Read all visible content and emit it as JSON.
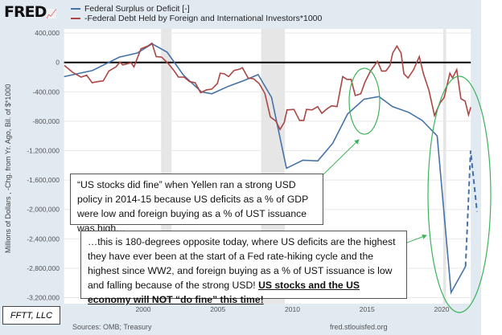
{
  "header": {
    "logo": "FRED"
  },
  "chart_data": {
    "type": "line",
    "ylabel": "Millions of Dollars , -Chg. from Yr. Ago, Bil. of $*1000",
    "xlim": [
      1994.7,
      2021.95
    ],
    "ylim": [
      -3200000,
      400000
    ],
    "xticks": [
      2000,
      2005,
      2010,
      2015,
      2020
    ],
    "yticks": [
      400000,
      0,
      -400000,
      -800000,
      -1200000,
      -1600000,
      -2000000,
      -2400000,
      -2800000,
      -3200000
    ],
    "ytick_labels": [
      "400,000",
      "0",
      "-400,000",
      "-800,000",
      "-1,200,000",
      "-1,600,000",
      "-2,000,000",
      "-2,400,000",
      "-2,800,000",
      "-3,200,000"
    ],
    "grid": true,
    "legend_placement": "top",
    "recessions": [
      [
        2001.2,
        2001.9
      ],
      [
        2007.9,
        2009.5
      ],
      [
        2020.1,
        2020.3
      ]
    ],
    "series": [
      {
        "name": "Federal Surplus or Deficit [-]",
        "color": "#4572a7",
        "points": [
          [
            1994.7,
            -193000
          ],
          [
            1996.6,
            -110000
          ],
          [
            1998.4,
            72000
          ],
          [
            1999.6,
            128000
          ],
          [
            2000.6,
            253000
          ],
          [
            2001.6,
            140000
          ],
          [
            2002.7,
            -174000
          ],
          [
            2003.9,
            -401000
          ],
          [
            2004.6,
            -427000
          ],
          [
            2005.7,
            -325000
          ],
          [
            2006.7,
            -250000
          ],
          [
            2007.7,
            -166000
          ],
          [
            2008.6,
            -476000
          ],
          [
            2009.6,
            -1440000
          ],
          [
            2010.7,
            -1330000
          ],
          [
            2011.7,
            -1340000
          ],
          [
            2012.7,
            -1100000
          ],
          [
            2013.7,
            -700000
          ],
          [
            2014.8,
            -500000
          ],
          [
            2015.8,
            -465000
          ],
          [
            2016.7,
            -600000
          ],
          [
            2017.8,
            -680000
          ],
          [
            2018.7,
            -790000
          ],
          [
            2019.7,
            -1000000
          ],
          [
            2020.63,
            -3130000
          ],
          [
            2021.6,
            -2775000
          ]
        ]
      },
      {
        "name": "-Federal Debt Held by Foreign and International Investors*1000",
        "color": "#aa4643",
        "points": [
          [
            1994.72,
            -42000
          ],
          [
            1995.28,
            -136000
          ],
          [
            1995.84,
            -200000
          ],
          [
            1996.21,
            -174000
          ],
          [
            1996.58,
            -276000
          ],
          [
            1996.96,
            -261000
          ],
          [
            1997.33,
            -250000
          ],
          [
            1997.7,
            -117000
          ],
          [
            1998.17,
            -61000
          ],
          [
            1998.45,
            4000
          ],
          [
            1998.63,
            -34000
          ],
          [
            1999.19,
            -4000
          ],
          [
            1999.38,
            -61000
          ],
          [
            1999.85,
            185000
          ],
          [
            2000.31,
            223000
          ],
          [
            2000.59,
            261000
          ],
          [
            2000.87,
            79000
          ],
          [
            2001.24,
            72000
          ],
          [
            2001.71,
            -23000
          ],
          [
            2002.08,
            -117000
          ],
          [
            2002.36,
            -200000
          ],
          [
            2002.74,
            -200000
          ],
          [
            2003.11,
            -261000
          ],
          [
            2003.48,
            -276000
          ],
          [
            2003.85,
            -412000
          ],
          [
            2004.23,
            -374000
          ],
          [
            2004.6,
            -363000
          ],
          [
            2004.97,
            -287000
          ],
          [
            2005.16,
            -147000
          ],
          [
            2005.44,
            -155000
          ],
          [
            2005.72,
            -193000
          ],
          [
            2006.09,
            -110000
          ],
          [
            2006.47,
            -91000
          ],
          [
            2006.65,
            -72000
          ],
          [
            2007.03,
            -212000
          ],
          [
            2007.4,
            -223000
          ],
          [
            2007.77,
            -287000
          ],
          [
            2008.15,
            -420000
          ],
          [
            2008.52,
            -741000
          ],
          [
            2008.89,
            -798000
          ],
          [
            2009.17,
            -911000
          ],
          [
            2009.45,
            -817000
          ],
          [
            2009.64,
            -646000
          ],
          [
            2010.1,
            -639000
          ],
          [
            2010.48,
            -790000
          ],
          [
            2010.76,
            -790000
          ],
          [
            2010.94,
            -639000
          ],
          [
            2011.32,
            -646000
          ],
          [
            2011.69,
            -601000
          ],
          [
            2011.97,
            -692000
          ],
          [
            2012.34,
            -628000
          ],
          [
            2012.62,
            -590000
          ],
          [
            2012.99,
            -601000
          ],
          [
            2013.37,
            -193000
          ],
          [
            2013.65,
            -231000
          ],
          [
            2013.93,
            -231000
          ],
          [
            2014.21,
            -450000
          ],
          [
            2014.58,
            -427000
          ],
          [
            2014.86,
            -268000
          ],
          [
            2015.23,
            -117000
          ],
          [
            2015.7,
            15000
          ],
          [
            2015.98,
            -117000
          ],
          [
            2016.26,
            -117000
          ],
          [
            2016.54,
            -42000
          ],
          [
            2016.72,
            128000
          ],
          [
            2017.0,
            223000
          ],
          [
            2017.28,
            128000
          ],
          [
            2017.47,
            -155000
          ],
          [
            2017.75,
            -212000
          ],
          [
            2018.12,
            -98000
          ],
          [
            2018.5,
            79000
          ],
          [
            2018.78,
            -155000
          ],
          [
            2019.15,
            -382000
          ],
          [
            2019.52,
            -722000
          ],
          [
            2019.89,
            -552000
          ],
          [
            2020.17,
            -476000
          ],
          [
            2020.55,
            -147000
          ],
          [
            2020.73,
            -212000
          ],
          [
            2021.01,
            -98000
          ],
          [
            2021.29,
            -495000
          ],
          [
            2021.57,
            -525000
          ],
          [
            2021.8,
            -714000
          ],
          [
            2021.95,
            -609000
          ]
        ]
      }
    ],
    "annotation_dashed": {
      "color": "#4572a7",
      "points": [
        [
          2021.6,
          -2775000
        ],
        [
          2021.94,
          -1200000
        ],
        [
          2022.37,
          -2030000
        ]
      ]
    },
    "annotation_color": "#3cb35a"
  },
  "annotations": {
    "box1": "“US stocks did fine” when Yellen ran a strong USD policy in 2014-15 because US deficits as a % of GDP were low and foreign buying as a % of UST issuance was high…",
    "box2_plain": "…this is 180-degrees opposite today, where US deficits are the highest they have ever been at the start of a Fed rate-hiking cycle and the highest since WW2, and foreign buying as a % of UST issuance is low and falling because of the strong USD!  ",
    "box2_bold": "US stocks and the US economy will NOT “do fine” this time!"
  },
  "footer": {
    "sources": "Sources: OMB; Treasury",
    "site": "fred.stlouisfed.org",
    "credit": "FFTT, LLC"
  }
}
